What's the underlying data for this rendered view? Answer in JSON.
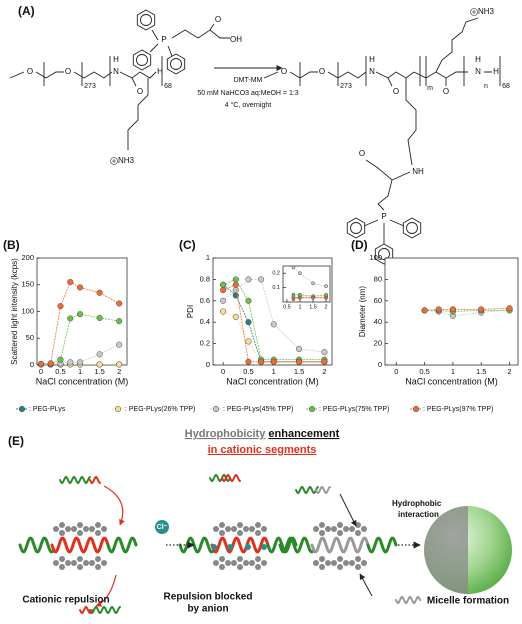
{
  "panel_a": {
    "label": "(A)",
    "reaction_conditions": [
      "DMT-MM",
      "50 mM NaHCO3 aq:MeOH = 1:3",
      "4 °C, overnight"
    ],
    "atoms": [
      "O",
      "O",
      "273",
      "H",
      "N",
      "O",
      "H",
      "68",
      "NH3",
      "P",
      "O",
      "OH",
      "O",
      "O",
      "273",
      "H",
      "N",
      "O",
      "m",
      "O",
      "N",
      "H",
      "n",
      "H",
      "68",
      "NH3",
      "NH",
      "O",
      "P"
    ]
  },
  "chart_data": [
    {
      "type": "line",
      "title": "(B)",
      "x_label": "NaCl concentration (M)",
      "y_label": "Scattered light intensity (kcps)",
      "x": [
        0,
        0.25,
        0.5,
        0.75,
        1,
        1.5,
        2
      ],
      "xlim": [
        -0.1,
        2.2
      ],
      "xticks": [
        0,
        0.5,
        1,
        1.5,
        2
      ],
      "ylim": [
        0,
        200
      ],
      "yticks": [
        0,
        50,
        100,
        150,
        200
      ],
      "series": [
        {
          "name": ": PEG-PLys",
          "color": "#2a7f7a",
          "values": [
            1,
            1,
            1,
            1,
            1,
            1,
            1
          ]
        },
        {
          "name": ": PEG-PLys(26% TPP)",
          "color": "#f3e08e",
          "values": [
            1,
            1,
            1,
            1,
            1,
            1,
            1
          ]
        },
        {
          "name": ": PEG-PLys(45% TPP)",
          "color": "#c9c9c9",
          "values": [
            1,
            1,
            3,
            5,
            5,
            20,
            38
          ]
        },
        {
          "name": ": PEG-PLys(75% TPP)",
          "color": "#6dbf4d",
          "values": [
            2,
            2,
            10,
            87,
            95,
            88,
            82
          ]
        },
        {
          "name": ": PEG-PLys(97% TPP)",
          "color": "#ef6a35",
          "values": [
            2,
            3,
            110,
            155,
            145,
            135,
            115
          ]
        }
      ]
    },
    {
      "type": "line",
      "title": "(C)",
      "x_label": "NaCl concentration (M)",
      "y_label": "PDI",
      "x": [
        0,
        0.25,
        0.5,
        0.75,
        1,
        1.5,
        2
      ],
      "xlim": [
        -0.2,
        2.15
      ],
      "xticks": [
        0,
        0.5,
        1,
        1.5,
        2
      ],
      "ylim": [
        0,
        1
      ],
      "yticks": [
        0,
        0.2,
        0.4,
        0.6,
        0.8,
        1
      ],
      "series": [
        {
          "color": "#2a7f7a",
          "values": [
            0.75,
            0.65,
            0.4,
            0.03,
            0.03,
            0.03,
            0.03
          ]
        },
        {
          "color": "#f3e08e",
          "values": [
            0.5,
            0.45,
            0.22,
            0.03,
            0.03,
            0.03,
            0.03
          ]
        },
        {
          "color": "#c9c9c9",
          "values": [
            0.6,
            0.7,
            0.8,
            0.8,
            0.38,
            0.15,
            0.12
          ]
        },
        {
          "color": "#6dbf4d",
          "values": [
            0.75,
            0.8,
            0.6,
            0.05,
            0.05,
            0.05,
            0.05
          ]
        },
        {
          "color": "#ef6a35",
          "values": [
            0.7,
            0.75,
            0.03,
            0.03,
            0.03,
            0.03,
            0.03
          ]
        }
      ]
    },
    {
      "type": "line",
      "x": [
        0.75,
        1,
        1.5,
        2
      ],
      "xlim": [
        0.35,
        2.15
      ],
      "xticks": [
        0.5,
        1,
        1.5,
        2
      ],
      "ylim": [
        0,
        0.25
      ],
      "yticks": [
        0.1,
        0.2
      ],
      "series": [
        {
          "color": "#2a7f7a",
          "values": [
            0.03,
            0.03,
            0.03,
            0.03
          ]
        },
        {
          "color": "#f3e08e",
          "values": [
            0.04,
            0.04,
            0.04,
            0.04
          ]
        },
        {
          "color": "#c9c9c9",
          "values": [
            0.24,
            0.2,
            0.13,
            0.11
          ]
        },
        {
          "color": "#6dbf4d",
          "values": [
            0.05,
            0.05,
            0.04,
            0.05
          ]
        },
        {
          "color": "#ef6a35",
          "values": [
            0.02,
            0.03,
            0.03,
            0.03
          ]
        }
      ]
    },
    {
      "type": "line",
      "title": "(D)",
      "x_label": "NaCl concentration (M)",
      "y_label": "Diameter (nm)",
      "x": [
        0.5,
        0.75,
        1,
        1.5,
        2
      ],
      "xlim": [
        -0.2,
        2.15
      ],
      "xticks": [
        0,
        0.5,
        1,
        1.5,
        2
      ],
      "ylim": [
        0,
        100
      ],
      "yticks": [
        0,
        20,
        40,
        60,
        80,
        100
      ],
      "series": [
        {
          "color": "#c9c9c9",
          "values": [
            51,
            50,
            46,
            49,
            52
          ]
        },
        {
          "color": "#6dbf4d",
          "values": [
            51,
            51,
            50,
            51,
            51
          ]
        },
        {
          "color": "#ef6a35",
          "values": [
            51,
            52,
            52,
            52,
            53
          ]
        }
      ]
    }
  ],
  "panel_e": {
    "label": "(E)",
    "heading_gray": "Hydrophobicity",
    "heading_black": "enhancement",
    "heading_red": "in cationic segments",
    "anion": "Cl⁻",
    "interaction": [
      "Hydrophobic",
      "interaction"
    ],
    "captions": [
      [
        "Cationic repulsion"
      ],
      [
        "Repulsion blocked",
        "by anion"
      ],
      [
        "Micelle formation"
      ]
    ]
  }
}
